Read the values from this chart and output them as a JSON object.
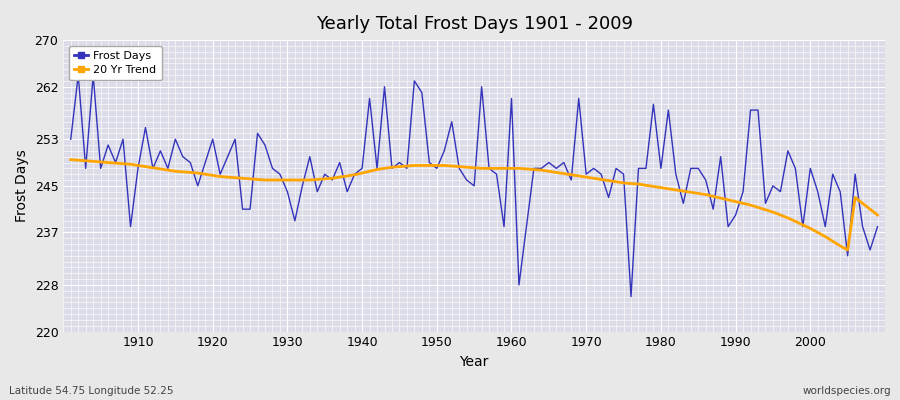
{
  "title": "Yearly Total Frost Days 1901 - 2009",
  "xlabel": "Year",
  "ylabel": "Frost Days",
  "bottom_left_text": "Latitude 54.75 Longitude 52.25",
  "bottom_right_text": "worldspecies.org",
  "line_color": "#3333bb",
  "trend_color": "#FFA500",
  "bg_color": "#dcdce8",
  "fig_color": "#e8e8e8",
  "ylim": [
    220,
    270
  ],
  "yticks": [
    220,
    228,
    237,
    245,
    253,
    262,
    270
  ],
  "xlim": [
    1900,
    2010
  ],
  "xticks": [
    1910,
    1920,
    1930,
    1940,
    1950,
    1960,
    1970,
    1980,
    1990,
    2000
  ],
  "years": [
    1901,
    1902,
    1903,
    1904,
    1905,
    1906,
    1907,
    1908,
    1909,
    1910,
    1911,
    1912,
    1913,
    1914,
    1915,
    1916,
    1917,
    1918,
    1919,
    1920,
    1921,
    1922,
    1923,
    1924,
    1925,
    1926,
    1927,
    1928,
    1929,
    1930,
    1931,
    1932,
    1933,
    1934,
    1935,
    1936,
    1937,
    1938,
    1939,
    1940,
    1941,
    1942,
    1943,
    1944,
    1945,
    1946,
    1947,
    1948,
    1949,
    1950,
    1951,
    1952,
    1953,
    1954,
    1955,
    1956,
    1957,
    1958,
    1959,
    1960,
    1961,
    1962,
    1963,
    1964,
    1965,
    1966,
    1967,
    1968,
    1969,
    1970,
    1971,
    1972,
    1973,
    1974,
    1975,
    1976,
    1977,
    1978,
    1979,
    1980,
    1981,
    1982,
    1983,
    1984,
    1985,
    1986,
    1987,
    1988,
    1989,
    1990,
    1991,
    1992,
    1993,
    1994,
    1995,
    1996,
    1997,
    1998,
    1999,
    2000,
    2001,
    2002,
    2003,
    2004,
    2005,
    2006,
    2007,
    2008,
    2009
  ],
  "frost_days": [
    253,
    264,
    248,
    264,
    248,
    252,
    249,
    253,
    238,
    248,
    255,
    248,
    251,
    248,
    253,
    250,
    249,
    245,
    249,
    253,
    247,
    250,
    253,
    241,
    241,
    254,
    252,
    248,
    247,
    244,
    239,
    245,
    250,
    244,
    247,
    246,
    249,
    244,
    247,
    248,
    260,
    248,
    262,
    248,
    249,
    248,
    263,
    261,
    249,
    248,
    251,
    256,
    248,
    246,
    245,
    262,
    248,
    247,
    238,
    260,
    228,
    238,
    248,
    248,
    249,
    248,
    249,
    246,
    260,
    247,
    248,
    247,
    243,
    248,
    247,
    226,
    248,
    248,
    259,
    248,
    258,
    247,
    242,
    248,
    248,
    246,
    241,
    250,
    238,
    240,
    244,
    258,
    258,
    242,
    245,
    244,
    251,
    248,
    238,
    248,
    244,
    238,
    247,
    244,
    233,
    247,
    238,
    234,
    238
  ],
  "trend_values": [
    249.5,
    249.4,
    249.3,
    249.2,
    249.1,
    249.0,
    248.9,
    248.8,
    248.7,
    248.5,
    248.3,
    248.1,
    247.9,
    247.7,
    247.5,
    247.4,
    247.3,
    247.2,
    247.0,
    246.8,
    246.6,
    246.5,
    246.4,
    246.3,
    246.2,
    246.1,
    246.0,
    246.0,
    246.0,
    246.0,
    246.0,
    246.0,
    246.0,
    246.1,
    246.2,
    246.3,
    246.5,
    246.7,
    246.9,
    247.2,
    247.5,
    247.8,
    248.0,
    248.2,
    248.3,
    248.4,
    248.5,
    248.5,
    248.5,
    248.5,
    248.5,
    248.4,
    248.3,
    248.2,
    248.1,
    248.0,
    248.0,
    248.0,
    248.0,
    248.0,
    248.0,
    247.9,
    247.8,
    247.7,
    247.5,
    247.3,
    247.1,
    246.9,
    246.7,
    246.5,
    246.3,
    246.1,
    245.9,
    245.7,
    245.5,
    245.4,
    245.3,
    245.1,
    244.9,
    244.7,
    244.5,
    244.3,
    244.1,
    243.9,
    243.7,
    243.5,
    243.2,
    242.9,
    242.6,
    242.3,
    242.0,
    241.7,
    241.3,
    240.9,
    240.5,
    240.0,
    239.5,
    238.9,
    238.3,
    237.7,
    237.0,
    236.3,
    235.5,
    234.7,
    234.0,
    243.0,
    242.0,
    241.0,
    240.0
  ]
}
